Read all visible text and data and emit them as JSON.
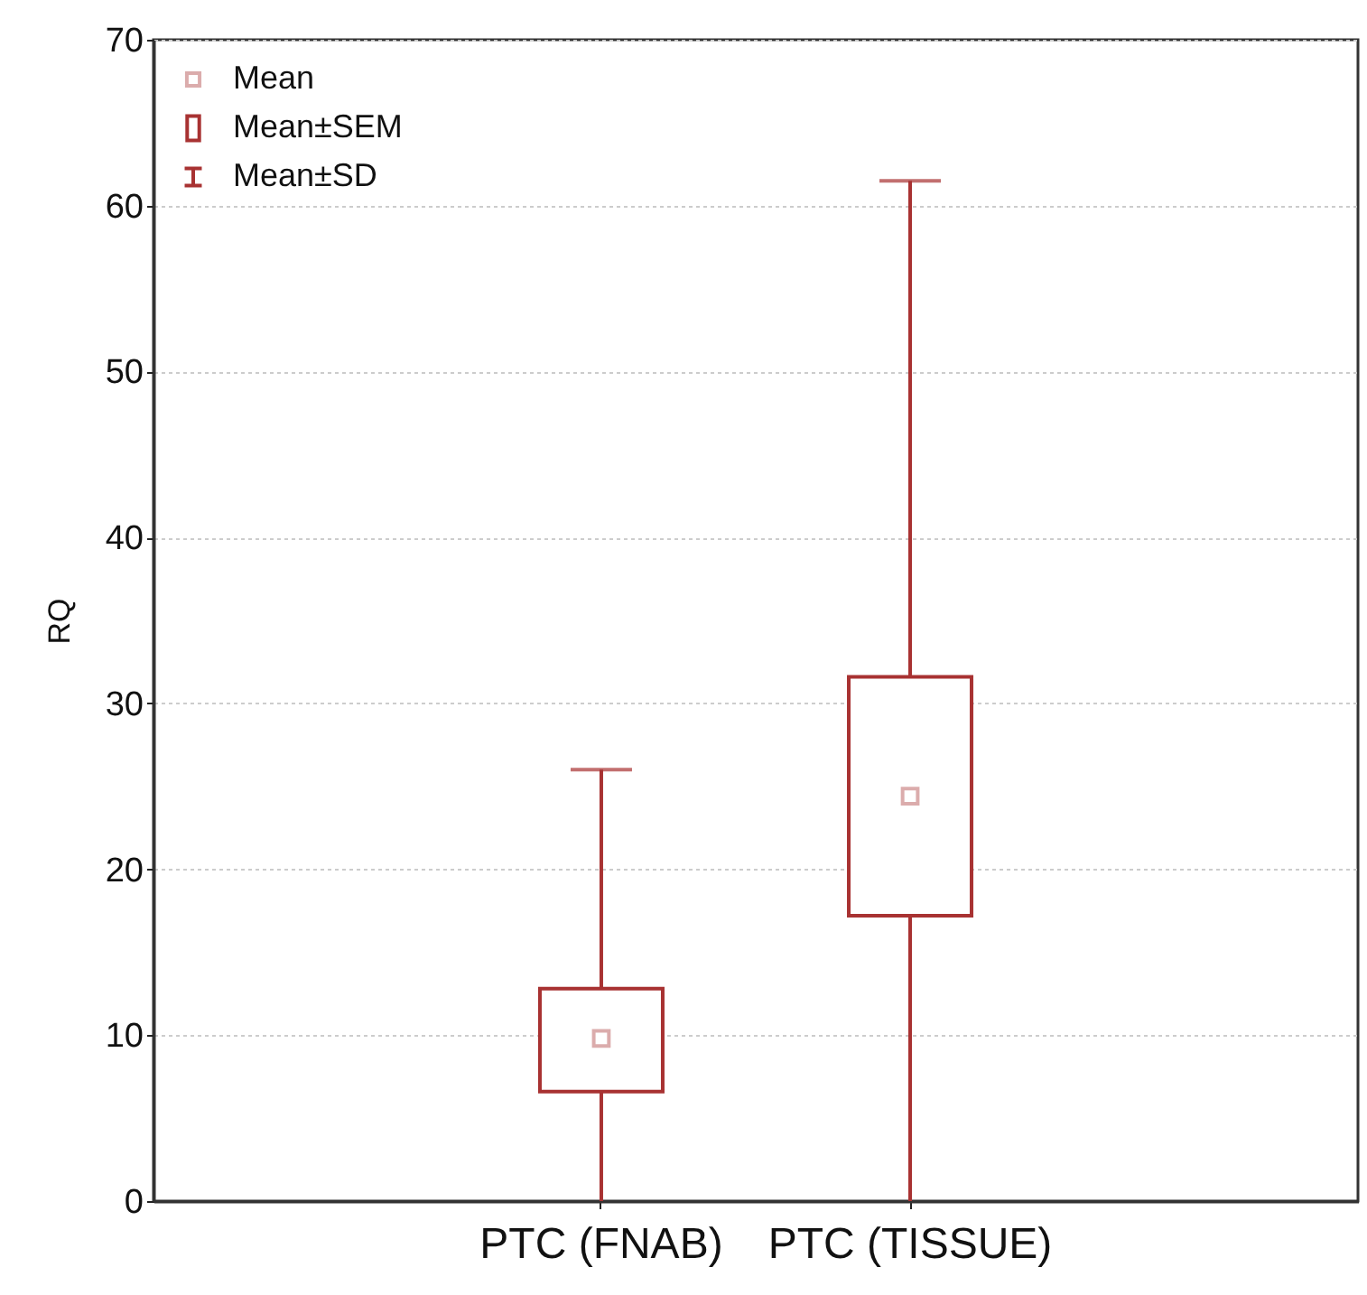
{
  "chart_data": {
    "type": "box",
    "ylabel": "RQ",
    "categories": [
      "PTC (FNAB)",
      "PTC (TISSUE)"
    ],
    "series": [
      {
        "color": "#a83232",
        "boxes": [
          {
            "low": 0,
            "q1": 6.6,
            "q3": 12.8,
            "high": 26,
            "mean": 9.8
          },
          {
            "low": 0,
            "q1": 17.2,
            "q3": 31.6,
            "high": 61.5,
            "mean": 24.4
          }
        ]
      }
    ],
    "ylim": [
      0,
      70
    ],
    "yticks": [
      0,
      10,
      20,
      30,
      40,
      50,
      60,
      70
    ],
    "grid": "y",
    "marker": "square",
    "annotations": [
      "Mean",
      "Mean±SEM",
      "Mean±SD"
    ]
  }
}
